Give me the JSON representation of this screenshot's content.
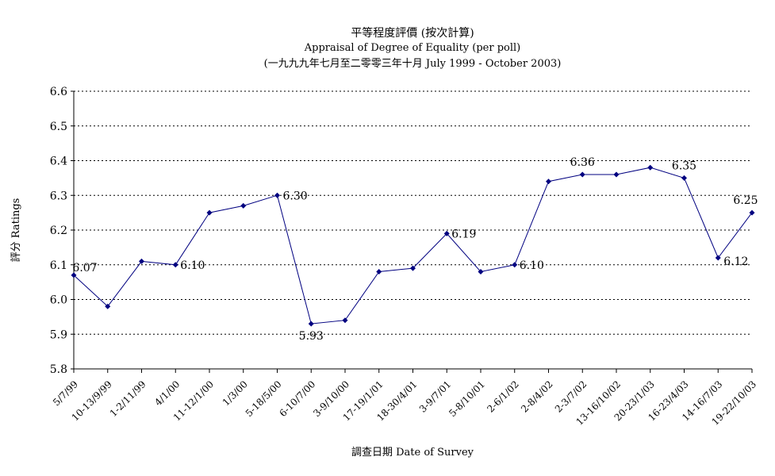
{
  "chart_data": {
    "type": "line",
    "title": "平等程度評價 (按次計算)",
    "subtitle": "Appraisal of Degree of Equality (per poll)",
    "subtitle2": "(一九九九年七月至二零零三年十月 July 1999 - October 2003)",
    "xlabel": "調查日期 Date of Survey",
    "ylabel": "評分 Ratings",
    "ylim": [
      5.8,
      6.6
    ],
    "yticks": [
      "6.6",
      "6.5",
      "6.4",
      "6.3",
      "6.2",
      "6.1",
      "6.0",
      "5.9",
      "5.8"
    ],
    "grid": true,
    "legend": "none",
    "categories": [
      "5/7/99",
      "10-13/9/99",
      "1-2/11/99",
      "4/1/00",
      "11-12/1/00",
      "1/3/00",
      "5-18/5/00",
      "6-10/7/00",
      "3-9/10/00",
      "17-19/1/01",
      "18-30/4/01",
      "3-9/7/01",
      "5-8/10/01",
      "2-6/1/02",
      "2-8/4/02",
      "2-3/7/02",
      "13-16/10/02",
      "20-23/1/03",
      "16-23/4/03",
      "14-16/7/03",
      "19-22/10/03"
    ],
    "series": [
      {
        "values": [
          6.07,
          5.98,
          6.11,
          6.1,
          6.25,
          6.27,
          6.3,
          5.93,
          5.94,
          6.08,
          6.09,
          6.19,
          6.08,
          6.1,
          6.34,
          6.36,
          6.36,
          6.38,
          6.35,
          6.12,
          6.25
        ],
        "data_labels": [
          "6.07",
          "",
          "",
          "6.10",
          "",
          "",
          "6.30",
          "5.93",
          "",
          "",
          "",
          "6.19",
          "",
          "6.10",
          "",
          "6.36",
          "",
          "",
          "6.35",
          "6.12",
          "6.25"
        ],
        "color": "#000080"
      }
    ]
  }
}
